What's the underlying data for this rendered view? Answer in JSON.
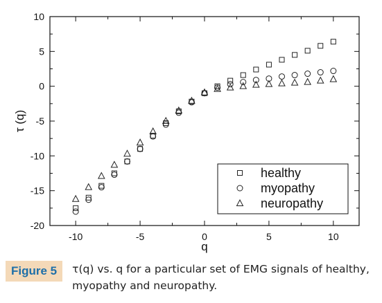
{
  "chart_data": {
    "type": "scatter",
    "xlabel": "q",
    "ylabel": "τ (q)",
    "xlim": [
      -12,
      12
    ],
    "ylim": [
      -20,
      10
    ],
    "xticks": [
      -10,
      -5,
      0,
      5,
      10
    ],
    "xtick_labels": [
      "-10",
      "-5",
      "0",
      "5",
      "10"
    ],
    "yticks": [
      -20,
      -15,
      -10,
      -5,
      0,
      5,
      10
    ],
    "ytick_labels": [
      "-20",
      "-15",
      "-10",
      "-5",
      "0",
      "5",
      "10"
    ],
    "grid": false,
    "legend_position": "bottom-right",
    "series": [
      {
        "name": "healthy",
        "marker": "square",
        "x": [
          -10,
          -9,
          -8,
          -7,
          -6,
          -5,
          -4,
          -3,
          -2,
          -1,
          0,
          1,
          2,
          3,
          4,
          5,
          6,
          7,
          8,
          9,
          10
        ],
        "y": [
          -17.5,
          -16,
          -14.3,
          -12.5,
          -10.8,
          -9.0,
          -7.1,
          -5.3,
          -3.6,
          -2.2,
          -1.0,
          0.0,
          0.8,
          1.6,
          2.4,
          3.1,
          3.8,
          4.5,
          5.1,
          5.8,
          6.4
        ]
      },
      {
        "name": "myopathy",
        "marker": "circle",
        "x": [
          -10,
          -9,
          -8,
          -7,
          -6,
          -5,
          -4,
          -3,
          -2,
          -1,
          0,
          1,
          2,
          3,
          4,
          5,
          6,
          7,
          8,
          9,
          10
        ],
        "y": [
          -18.0,
          -16.3,
          -14.5,
          -12.7,
          -10.8,
          -9.0,
          -7.2,
          -5.5,
          -3.8,
          -2.3,
          -1.0,
          -0.2,
          0.3,
          0.6,
          0.9,
          1.1,
          1.4,
          1.6,
          1.8,
          2.0,
          2.2
        ]
      },
      {
        "name": "neuropathy",
        "marker": "triangle",
        "x": [
          -10,
          -9,
          -8,
          -7,
          -6,
          -5,
          -4,
          -3,
          -2,
          -1,
          0,
          1,
          2,
          3,
          4,
          5,
          6,
          7,
          8,
          9,
          10
        ],
        "y": [
          -16.2,
          -14.5,
          -12.9,
          -11.3,
          -9.7,
          -8.1,
          -6.5,
          -5.0,
          -3.5,
          -2.1,
          -0.9,
          -0.4,
          -0.2,
          0.0,
          0.2,
          0.3,
          0.4,
          0.5,
          0.6,
          0.8,
          1.0
        ]
      }
    ]
  },
  "caption": {
    "figure_label": "Figure 5",
    "text": "τ(q) vs. q for a particular set of EMG signals of healthy, myopathy and neuropathy."
  },
  "colors": {
    "figure_label_bg": "#f4d9b8",
    "figure_label_text": "#1e6fa8",
    "marker_stroke": "#222222"
  }
}
